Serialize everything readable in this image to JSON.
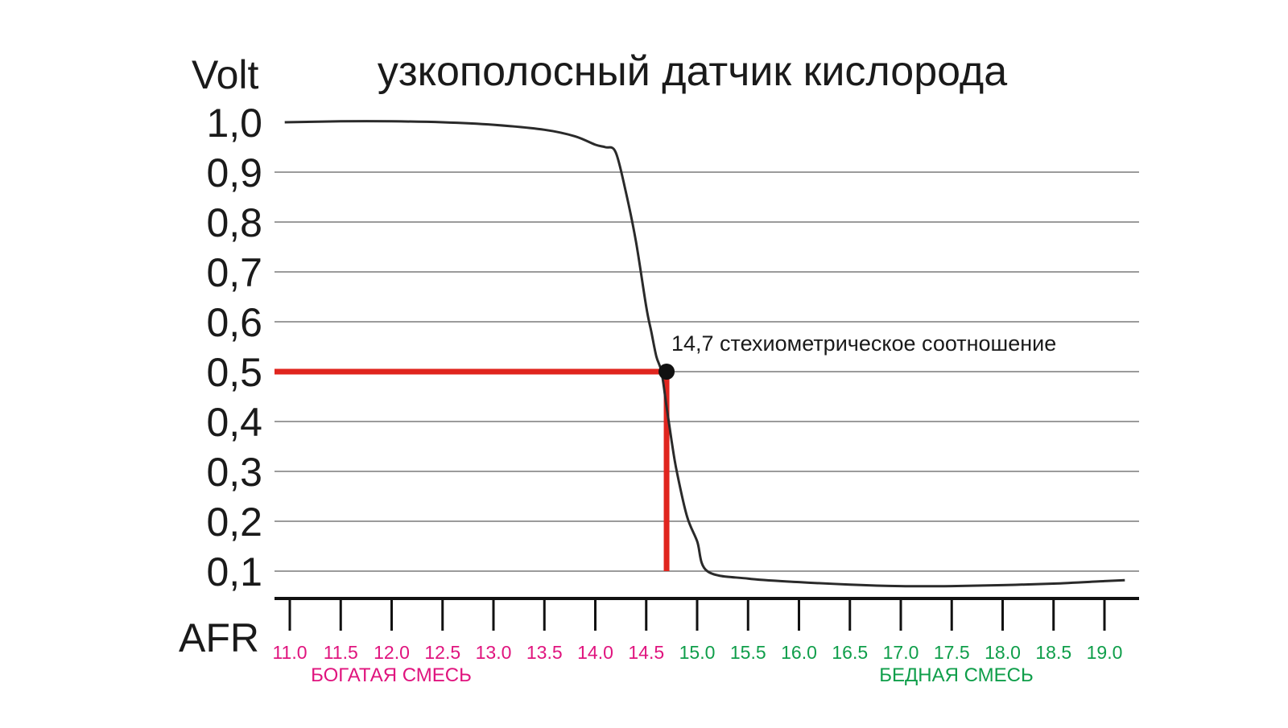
{
  "chart_data": {
    "type": "line",
    "title": "узкополосный датчик кислорода",
    "ylabel": "Volt",
    "xlabel": "AFR",
    "ylim": [
      0.05,
      1.0
    ],
    "xlim": [
      10.95,
      19.45
    ],
    "grid": true,
    "y_ticks": [
      {
        "value": 1.0,
        "label": "1,0"
      },
      {
        "value": 0.9,
        "label": "0,9"
      },
      {
        "value": 0.8,
        "label": "0,8"
      },
      {
        "value": 0.7,
        "label": "0,7"
      },
      {
        "value": 0.6,
        "label": "0,6"
      },
      {
        "value": 0.5,
        "label": "0,5"
      },
      {
        "value": 0.4,
        "label": "0,4"
      },
      {
        "value": 0.3,
        "label": "0,3"
      },
      {
        "value": 0.2,
        "label": "0,2"
      },
      {
        "value": 0.1,
        "label": "0,1"
      }
    ],
    "x_ticks": [
      {
        "value": 11.0,
        "label": "11.0",
        "zone": "rich"
      },
      {
        "value": 11.5,
        "label": "11.5",
        "zone": "rich"
      },
      {
        "value": 12.0,
        "label": "12.0",
        "zone": "rich"
      },
      {
        "value": 12.5,
        "label": "12.5",
        "zone": "rich"
      },
      {
        "value": 13.0,
        "label": "13.0",
        "zone": "rich"
      },
      {
        "value": 13.5,
        "label": "13.5",
        "zone": "rich"
      },
      {
        "value": 14.0,
        "label": "14.0",
        "zone": "rich"
      },
      {
        "value": 14.5,
        "label": "14.5",
        "zone": "rich"
      },
      {
        "value": 15.0,
        "label": "15.0",
        "zone": "lean"
      },
      {
        "value": 15.5,
        "label": "15.5",
        "zone": "lean"
      },
      {
        "value": 16.0,
        "label": "16.0",
        "zone": "lean"
      },
      {
        "value": 16.5,
        "label": "16.5",
        "zone": "lean"
      },
      {
        "value": 17.0,
        "label": "17.0",
        "zone": "lean"
      },
      {
        "value": 17.5,
        "label": "17.5",
        "zone": "lean"
      },
      {
        "value": 18.0,
        "label": "18.0",
        "zone": "lean"
      },
      {
        "value": 18.5,
        "label": "18.5",
        "zone": "lean"
      },
      {
        "value": 19.0,
        "label": "19.0",
        "zone": "lean"
      }
    ],
    "series": [
      {
        "x": [
          10.95,
          11.5,
          12.0,
          12.5,
          13.0,
          13.5,
          13.8,
          14.0,
          14.1,
          14.2,
          14.3,
          14.4,
          14.5,
          14.55,
          14.6,
          14.65,
          14.7,
          14.75,
          14.8,
          14.9,
          15.0,
          15.1,
          15.5,
          16.0,
          16.5,
          17.0,
          17.5,
          18.0,
          18.5,
          19.0,
          19.2
        ],
        "y": [
          1.0,
          1.002,
          1.002,
          1.0,
          0.995,
          0.985,
          0.972,
          0.955,
          0.95,
          0.94,
          0.86,
          0.76,
          0.63,
          0.58,
          0.53,
          0.5,
          0.43,
          0.36,
          0.3,
          0.21,
          0.16,
          0.1,
          0.085,
          0.078,
          0.073,
          0.07,
          0.07,
          0.072,
          0.075,
          0.08,
          0.082
        ]
      }
    ],
    "reference_point": {
      "x": 14.7,
      "y": 0.5
    },
    "reference_line_ymin": 0.1,
    "annotation": "14,7 стехиометрическое соотношение",
    "zones": {
      "rich": {
        "label": "БОГАТАЯ СМЕСЬ",
        "color": "#e0147e",
        "x_center": 12.2
      },
      "lean": {
        "label": "БЕДНАЯ СМЕСЬ",
        "color": "#0f9e4a",
        "x_center": 17.5
      }
    },
    "colors": {
      "curve": "#2a2a2a",
      "grid": "#7a7a7a",
      "axis": "#111111",
      "reference": "#e0251e",
      "point": "#111111"
    }
  }
}
